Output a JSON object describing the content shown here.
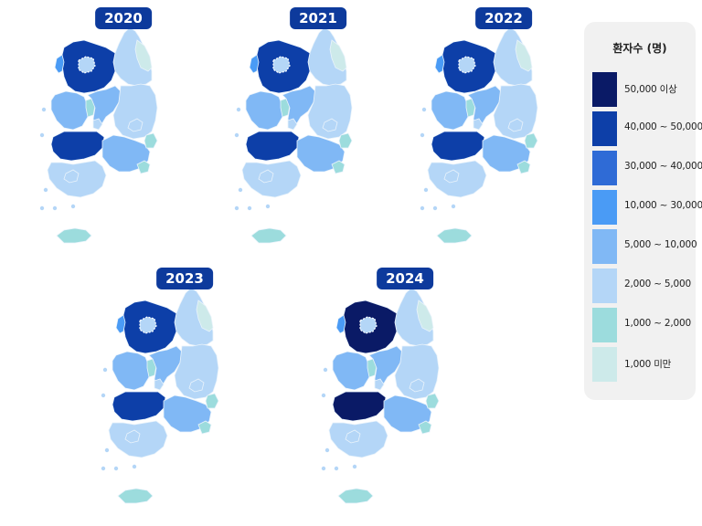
{
  "legend": {
    "title": "환자수 (명)",
    "items": [
      {
        "label": "50,000 이상",
        "color": "#0a1a66"
      },
      {
        "label": "40,000 ~ 50,000",
        "color": "#0d3fa8"
      },
      {
        "label": "30,000 ~ 40,000",
        "color": "#2f6bd6"
      },
      {
        "label": "10,000 ~ 30,000",
        "color": "#4a9bf5"
      },
      {
        "label": "5,000 ~ 10,000",
        "color": "#80b8f5"
      },
      {
        "label": "2,000 ~ 5,000",
        "color": "#b4d6f7"
      },
      {
        "label": "1,000 ~ 2,000",
        "color": "#9cdcdd"
      },
      {
        "label": "1,000 미만",
        "color": "#cdeaea"
      }
    ]
  },
  "maps": [
    {
      "year": "2020",
      "regions": {
        "gyeonggi": 1,
        "seoul": 5,
        "incheon": 3,
        "gangwon": 5,
        "chungbuk": 4,
        "chungnam": 4,
        "sejong": 6,
        "daejeon": 5,
        "jeonbuk": 1,
        "gwangju": 5,
        "jeonnam": 5,
        "gyeongbuk": 5,
        "daegu": 5,
        "gyeongnam": 4,
        "ulsan": 6,
        "busan": 6,
        "jeju": 6,
        "east_coast": 7
      }
    },
    {
      "year": "2021",
      "regions": {
        "gyeonggi": 1,
        "seoul": 5,
        "incheon": 3,
        "gangwon": 5,
        "chungbuk": 4,
        "chungnam": 4,
        "sejong": 6,
        "daejeon": 5,
        "jeonbuk": 1,
        "gwangju": 5,
        "jeonnam": 5,
        "gyeongbuk": 5,
        "daegu": 5,
        "gyeongnam": 4,
        "ulsan": 6,
        "busan": 6,
        "jeju": 6,
        "east_coast": 7
      }
    },
    {
      "year": "2022",
      "regions": {
        "gyeonggi": 1,
        "seoul": 5,
        "incheon": 3,
        "gangwon": 5,
        "chungbuk": 4,
        "chungnam": 4,
        "sejong": 6,
        "daejeon": 5,
        "jeonbuk": 1,
        "gwangju": 5,
        "jeonnam": 5,
        "gyeongbuk": 5,
        "daegu": 5,
        "gyeongnam": 4,
        "ulsan": 6,
        "busan": 6,
        "jeju": 6,
        "east_coast": 7
      }
    },
    {
      "year": "2023",
      "regions": {
        "gyeonggi": 1,
        "seoul": 5,
        "incheon": 3,
        "gangwon": 5,
        "chungbuk": 4,
        "chungnam": 4,
        "sejong": 6,
        "daejeon": 5,
        "jeonbuk": 1,
        "gwangju": 5,
        "jeonnam": 5,
        "gyeongbuk": 5,
        "daegu": 5,
        "gyeongnam": 4,
        "ulsan": 6,
        "busan": 6,
        "jeju": 6,
        "east_coast": 7
      }
    },
    {
      "year": "2024",
      "regions": {
        "gyeonggi": 0,
        "seoul": 5,
        "incheon": 3,
        "gangwon": 5,
        "chungbuk": 4,
        "chungnam": 4,
        "sejong": 6,
        "daejeon": 5,
        "jeonbuk": 0,
        "gwangju": 5,
        "jeonnam": 5,
        "gyeongbuk": 5,
        "daegu": 5,
        "gyeongnam": 4,
        "ulsan": 6,
        "busan": 6,
        "jeju": 6,
        "east_coast": 7
      }
    }
  ]
}
